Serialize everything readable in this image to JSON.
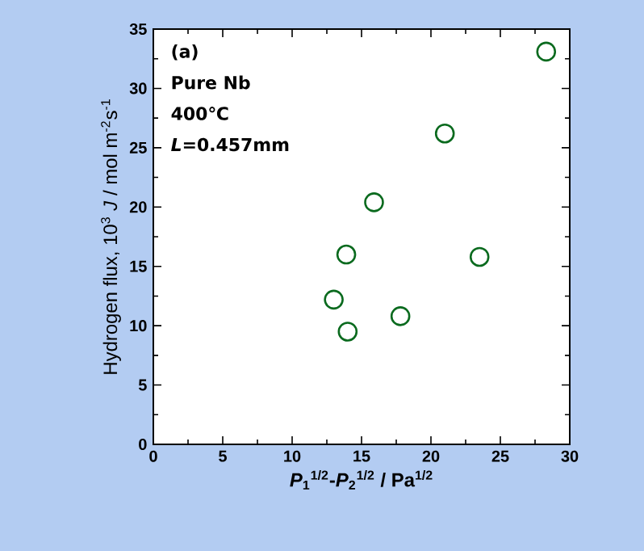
{
  "chart_data": {
    "type": "scatter",
    "xlabel": "*P*$_{1}$$^{1/2}$-*P*$_{2}$$^{1/2}$ / Pa$^{1/2}$",
    "ylabel": "Hydrogen flux, 10$^{3}$ *J* / mol m$^{-2}$s$^{-1}$",
    "annotations": [
      "(a)",
      "Pure Nb",
      "400℃",
      "*L*=0.457mm"
    ],
    "x": [
      28.3,
      21.0,
      15.9,
      13.9,
      23.5,
      13.0,
      17.8,
      14.0
    ],
    "values": [
      33.1,
      26.2,
      20.4,
      16.0,
      15.8,
      12.2,
      10.8,
      9.5
    ],
    "color": "#0a6a1e",
    "marker": "circle",
    "xlim": [
      0,
      30
    ],
    "ylim": [
      0,
      35
    ],
    "xticks": [
      0,
      5,
      10,
      15,
      20,
      25,
      30
    ],
    "yticks": [
      0,
      5,
      10,
      15,
      20,
      25,
      30,
      35
    ]
  }
}
